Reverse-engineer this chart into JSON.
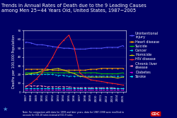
{
  "title": "Trends in Annual Rates of Death due to the 9 Leading Causes\namong Men 25−44 Years Old, United States, 1987−2005",
  "background_color": "#000066",
  "plot_bg_color": "#000066",
  "years": [
    1987,
    1988,
    1989,
    1990,
    1991,
    1992,
    1993,
    1994,
    1995,
    1996,
    1997,
    1998,
    1999,
    2000,
    2001,
    2002,
    2003,
    2004,
    2005
  ],
  "series": {
    "Unintentional\ninjury": {
      "color": "#5555FF",
      "style": "solid",
      "marker": "o",
      "values": [
        57,
        56,
        54,
        54,
        53,
        52,
        51,
        50,
        50,
        49,
        49,
        49,
        50,
        50,
        50,
        51,
        51,
        51,
        53
      ]
    },
    "Heart disease": {
      "color": "#FFA500",
      "style": "solid",
      "marker": "s",
      "values": [
        26,
        26,
        26,
        26,
        26,
        25,
        25,
        25,
        25,
        25,
        25,
        25,
        26,
        26,
        27,
        27,
        27,
        27,
        27
      ]
    },
    "Suicide": {
      "color": "#00CC00",
      "style": "solid",
      "marker": "^",
      "values": [
        22,
        22,
        22,
        22,
        22,
        22,
        22,
        22,
        22,
        22,
        22,
        22,
        22,
        22,
        21,
        21,
        21,
        21,
        22
      ]
    },
    "Cancer": {
      "color": "#00DDDD",
      "style": "dashed",
      "marker": "D",
      "values": [
        20,
        20,
        20,
        20,
        20,
        20,
        19,
        19,
        18,
        18,
        18,
        18,
        18,
        18,
        18,
        18,
        18,
        18,
        18
      ]
    },
    "Homicide": {
      "color": "#CCCC00",
      "style": "solid",
      "marker": "v",
      "values": [
        20,
        21,
        22,
        24,
        25,
        26,
        27,
        25,
        23,
        21,
        18,
        17,
        17,
        17,
        17,
        17,
        17,
        16,
        17
      ]
    },
    "HIV disease": {
      "color": "#FF2222",
      "style": "solid",
      "marker": "o",
      "values": [
        6,
        10,
        15,
        22,
        30,
        40,
        52,
        59,
        65,
        50,
        22,
        17,
        14,
        13,
        12,
        11,
        10,
        9,
        8
      ]
    },
    "Chronic liver\ndisease": {
      "color": "#FF88BB",
      "style": "dashed",
      "marker": "s",
      "values": [
        7,
        7,
        7,
        7,
        6,
        6,
        6,
        6,
        6,
        5,
        5,
        5,
        5,
        5,
        5,
        5,
        5,
        4,
        4
      ]
    },
    "Diabetes": {
      "color": "#DD00DD",
      "style": "dashed",
      "marker": "^",
      "values": [
        3,
        3,
        3,
        3,
        3,
        3,
        3,
        3,
        3,
        3,
        3,
        3,
        3,
        3,
        3,
        3,
        3,
        3,
        3
      ]
    },
    "Stroke": {
      "color": "#00FFFF",
      "style": "dashed",
      "marker": "D",
      "values": [
        4,
        4,
        4,
        4,
        4,
        4,
        4,
        4,
        4,
        4,
        4,
        4,
        4,
        4,
        4,
        4,
        4,
        4,
        4
      ]
    }
  },
  "ylabel": "Deaths per 100,000 Population",
  "ylim": [
    0,
    70
  ],
  "yticks": [
    0,
    10,
    20,
    30,
    40,
    50,
    60,
    70
  ],
  "note": "Note: For comparison with data for 1999 and later years, data for 1987-1998 were modified to\naccount for ICD-10 rules instead of ICD-9 rules.",
  "title_fontsize": 4.8,
  "axis_fontsize": 3.5,
  "tick_fontsize": 3.0,
  "legend_fontsize": 3.5,
  "cdc_logo_text": "CDC"
}
